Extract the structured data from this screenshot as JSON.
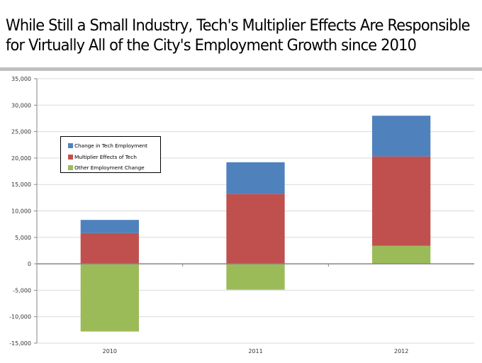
{
  "slide": {
    "title_line1": "While Still a Small Industry, Tech's Multiplier Effects Are Responsible",
    "title_line2": "for Virtually All of the City's Employment Growth since 2010"
  },
  "chart_data": {
    "type": "bar",
    "stacked": true,
    "title": "While Still a Small Industry, Tech's Multiplier Effects Are Responsible for Virtually All of the City's Employment Growth since 2010",
    "xlabel": "",
    "ylabel": "",
    "categories": [
      "2010",
      "2011",
      "2012"
    ],
    "series": [
      {
        "name": "Other Employment Change",
        "color": "#9bbb59",
        "values": [
          -12800,
          -4900,
          3400
        ]
      },
      {
        "name": "Multiplier Effects of Tech",
        "color": "#c0504d",
        "values": [
          5800,
          13200,
          16900
        ]
      },
      {
        "name": "Change in Tech Employment",
        "color": "#4f81bd",
        "values": [
          2500,
          6000,
          7700
        ]
      }
    ],
    "ylim": [
      -15000,
      35000
    ],
    "yticks": [
      -15000,
      -10000,
      -5000,
      0,
      5000,
      10000,
      15000,
      20000,
      25000,
      30000,
      35000
    ],
    "ytick_labels": [
      "-15,000",
      "-10,000",
      "-5,000",
      "0",
      "5,000",
      "10,000",
      "15,000",
      "20,000",
      "25,000",
      "30,000",
      "35,000"
    ],
    "grid": true,
    "legend": {
      "position": "upper-left inside plot",
      "entries": [
        {
          "label": "Change in Tech Employment",
          "color": "#4f81bd"
        },
        {
          "label": "Multiplier Effects of Tech",
          "color": "#c0504d"
        },
        {
          "label": "Other Employment Change",
          "color": "#9bbb59"
        }
      ]
    }
  }
}
